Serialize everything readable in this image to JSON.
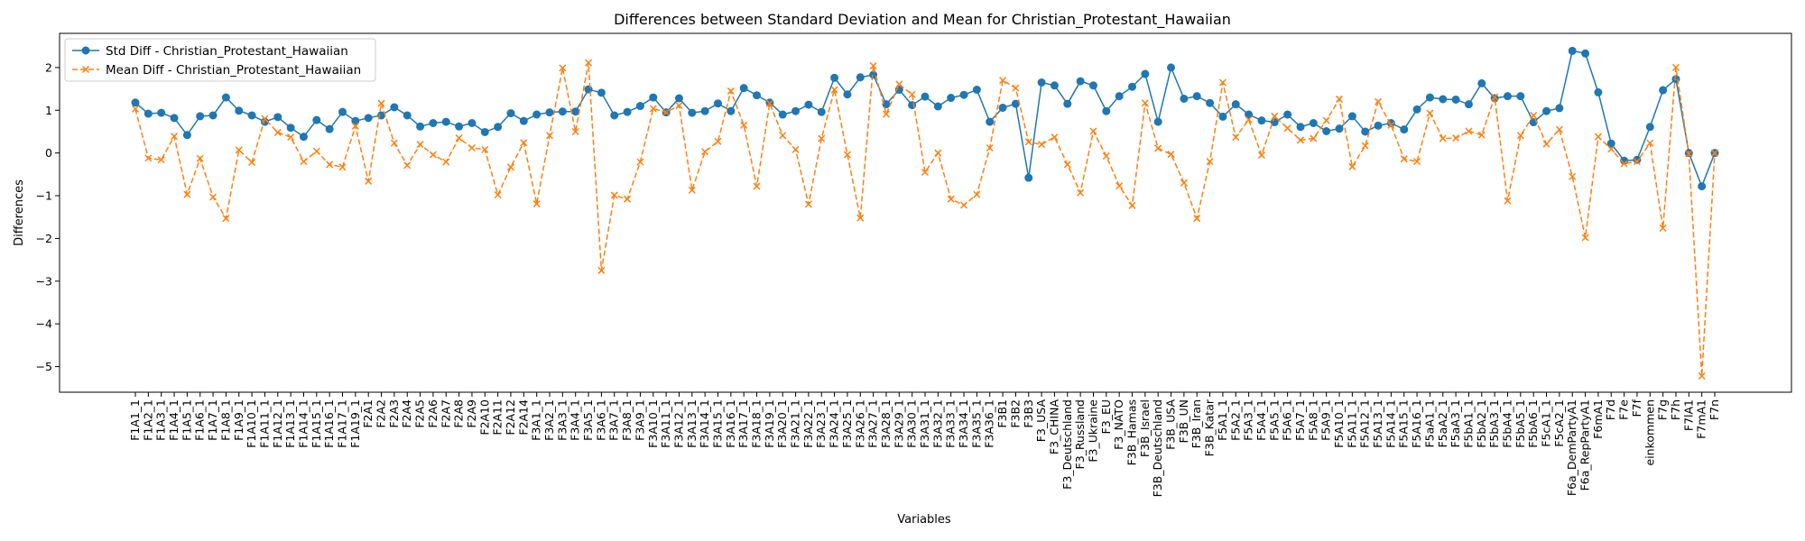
{
  "chart_data": {
    "type": "line",
    "title": "Differences between Standard Deviation and Mean for Christian_Protestant_Hawaiian",
    "xlabel": "Variables",
    "ylabel": "Differences",
    "ylim": [
      -5.6,
      2.8
    ],
    "yticks": [
      2,
      1,
      0,
      -1,
      -2,
      -3,
      -4,
      -5
    ],
    "ytick_labels": [
      "2",
      "1",
      "0",
      "−1",
      "−2",
      "−3",
      "−4",
      "−5"
    ],
    "grid": false,
    "legend_position": "top-left",
    "categories": [
      "F1A1_1",
      "F1A2_1",
      "F1A3_1",
      "F1A4_1",
      "F1A5_1",
      "F1A6_1",
      "F1A7_1",
      "F1A8_1",
      "F1A9_1",
      "F1A10_1",
      "F1A11_1",
      "F1A12_1",
      "F1A13_1",
      "F1A14_1",
      "F1A15_1",
      "F1A16_1",
      "F1A17_1",
      "F1A19_1",
      "F2A1",
      "F2A2",
      "F2A3",
      "F2A4",
      "F2A5",
      "F2A6",
      "F2A7",
      "F2A8",
      "F2A9",
      "F2A10",
      "F2A11",
      "F2A12",
      "F2A14",
      "F3A1_1",
      "F3A2_1",
      "F3A3_1",
      "F3A4_1",
      "F3A5_1",
      "F3A6_1",
      "F3A7_1",
      "F3A8_1",
      "F3A9_1",
      "F3A10_1",
      "F3A11_1",
      "F3A12_1",
      "F3A13_1",
      "F3A14_1",
      "F3A15_1",
      "F3A16_1",
      "F3A17_1",
      "F3A18_1",
      "F3A19_1",
      "F3A20_1",
      "F3A21_1",
      "F3A22_1",
      "F3A23_1",
      "F3A24_1",
      "F3A25_1",
      "F3A26_1",
      "F3A27_1",
      "F3A28_1",
      "F3A29_1",
      "F3A30_1",
      "F3A31_1",
      "F3A32_1",
      "F3A33_1",
      "F3A34_1",
      "F3A35_1",
      "F3A36_1",
      "F3B1",
      "F3B2",
      "F3B3",
      "F3_USA",
      "F3_CHINA",
      "F3_Deutschland",
      "F3_Russland",
      "F3_Ukraine",
      "F3_EU",
      "F3_NATO",
      "F3B_Hamas",
      "F3B_Israel",
      "F3B_Deutschland",
      "F3B_USA",
      "F3B_UN",
      "F3B_Iran",
      "F3B_Katar",
      "F5A1_1",
      "F5A2_1",
      "F5A3_1",
      "F5A4_1",
      "F5A5_1",
      "F5A6_1",
      "F5A7_1",
      "F5A8_1",
      "F5A9_1",
      "F5A10_1",
      "F5A11_1",
      "F5A12_1",
      "F5A13_1",
      "F5A14_1",
      "F5A15_1",
      "F5A16_1",
      "F5aA1_1",
      "F5aA2_1",
      "F5aA3_1",
      "F5bA1_1",
      "F5bA2_1",
      "F5bA3_1",
      "F5bA4_1",
      "F5bA5_1",
      "F5bA6_1",
      "F5cA1_1",
      "F5cA2_1",
      "F6a_DemPartyA1",
      "F6a_RepPartyA1",
      "F6mA1",
      "F7d",
      "F7e",
      "F7f",
      "einkommen",
      "F7g",
      "F7h",
      "F7lA1",
      "F7mA1",
      "F7n"
    ],
    "series": [
      {
        "name": "Std Diff - Christian_Protestant_Hawaiian",
        "color": "#1f77b4",
        "marker": "circle",
        "line_style": "solid",
        "values": [
          1.18,
          0.92,
          0.94,
          0.82,
          0.42,
          0.86,
          0.88,
          1.3,
          0.99,
          0.88,
          0.73,
          0.84,
          0.59,
          0.38,
          0.77,
          0.56,
          0.96,
          0.75,
          0.82,
          0.88,
          1.07,
          0.88,
          0.62,
          0.7,
          0.73,
          0.62,
          0.7,
          0.49,
          0.61,
          0.93,
          0.75,
          0.9,
          0.95,
          0.97,
          0.97,
          1.49,
          1.41,
          0.88,
          0.96,
          1.1,
          1.3,
          0.95,
          1.28,
          0.94,
          0.98,
          1.16,
          0.98,
          1.52,
          1.35,
          1.18,
          0.9,
          0.98,
          1.13,
          0.96,
          1.76,
          1.37,
          1.77,
          1.83,
          1.14,
          1.48,
          1.12,
          1.32,
          1.09,
          1.29,
          1.36,
          1.48,
          0.73,
          1.06,
          1.15,
          -0.58,
          1.65,
          1.58,
          1.15,
          1.68,
          1.58,
          0.98,
          1.33,
          1.55,
          1.85,
          0.73,
          2.0,
          1.27,
          1.33,
          1.17,
          0.85,
          1.14,
          0.9,
          0.76,
          0.72,
          0.9,
          0.61,
          0.7,
          0.51,
          0.57,
          0.86,
          0.5,
          0.64,
          0.7,
          0.55,
          1.02,
          1.3,
          1.26,
          1.25,
          1.14,
          1.63,
          1.28,
          1.33,
          1.33,
          0.72,
          0.98,
          1.05,
          2.39,
          2.33,
          1.42,
          0.22,
          -0.18,
          -0.16,
          0.61,
          1.47,
          1.73,
          0.0,
          -0.78,
          0.0
        ]
      },
      {
        "name": "Mean Diff - Christian_Protestant_Hawaiian",
        "color": "#ff7f0e",
        "marker": "x",
        "line_style": "dashed",
        "values": [
          1.03,
          -0.12,
          -0.16,
          0.39,
          -0.97,
          -0.13,
          -1.03,
          -1.53,
          0.07,
          -0.22,
          0.8,
          0.48,
          0.37,
          -0.2,
          0.04,
          -0.27,
          -0.33,
          0.63,
          -0.66,
          1.16,
          0.23,
          -0.29,
          0.2,
          -0.04,
          -0.21,
          0.35,
          0.12,
          0.08,
          -0.98,
          -0.33,
          0.24,
          -1.19,
          0.41,
          1.99,
          0.5,
          2.11,
          -2.75,
          -0.99,
          -1.08,
          -0.21,
          1.04,
          0.95,
          1.11,
          -0.87,
          0.03,
          0.27,
          1.45,
          0.65,
          -0.78,
          1.16,
          0.41,
          0.08,
          -1.2,
          0.34,
          1.48,
          -0.04,
          -1.52,
          2.04,
          0.91,
          1.61,
          1.37,
          -0.45,
          0.0,
          -1.08,
          -1.22,
          -0.97,
          0.12,
          1.7,
          1.52,
          0.26,
          0.2,
          0.37,
          -0.27,
          -0.93,
          0.51,
          -0.07,
          -0.77,
          -1.23,
          1.17,
          0.11,
          -0.03,
          -0.7,
          -1.53,
          -0.2,
          1.65,
          0.37,
          0.78,
          -0.05,
          0.86,
          0.58,
          0.3,
          0.34,
          0.76,
          1.26,
          -0.32,
          0.17,
          1.2,
          0.65,
          -0.14,
          -0.2,
          0.93,
          0.34,
          0.35,
          0.51,
          0.42,
          1.31,
          -1.12,
          0.41,
          0.88,
          0.21,
          0.55,
          -0.55,
          -1.98,
          0.38,
          0.09,
          -0.25,
          -0.2,
          0.23,
          -1.76,
          2.0,
          -0.02,
          -5.22,
          0.0
        ]
      }
    ]
  }
}
